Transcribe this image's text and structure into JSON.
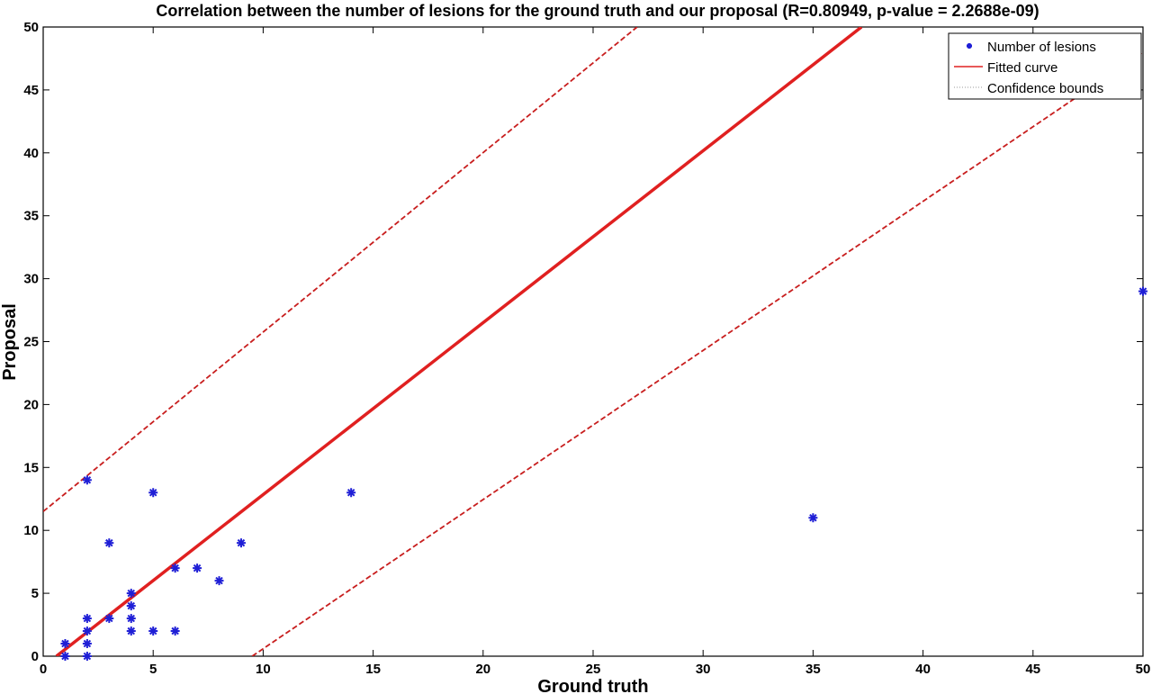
{
  "chart_data": {
    "type": "scatter",
    "title": "Correlation between the number of lesions for the ground truth and our proposal (R=0.80949, p-value = 2.2688e-09)",
    "xlabel": "Ground truth",
    "ylabel": "Proposal",
    "xlim": [
      0,
      50
    ],
    "ylim": [
      0,
      50
    ],
    "xticks": [
      0,
      5,
      10,
      15,
      20,
      25,
      30,
      35,
      40,
      45,
      50
    ],
    "yticks": [
      0,
      5,
      10,
      15,
      20,
      25,
      30,
      35,
      40,
      45,
      50
    ],
    "grid": false,
    "legend_position": "top-right",
    "series": [
      {
        "name": "Number of lesions",
        "kind": "scatter",
        "marker": "asterisk",
        "color": "#1f1fd6",
        "x": [
          1,
          1,
          2,
          2,
          2,
          2,
          2,
          3,
          3,
          4,
          4,
          4,
          4,
          5,
          5,
          6,
          6,
          7,
          8,
          9,
          14,
          35,
          50
        ],
        "y": [
          0,
          1,
          0,
          1,
          2,
          3,
          14,
          3,
          9,
          2,
          3,
          4,
          5,
          2,
          13,
          2,
          7,
          7,
          6,
          9,
          13,
          11,
          29
        ]
      },
      {
        "name": "Fitted curve",
        "kind": "line",
        "style": "solid",
        "color": "#e02020",
        "x": [
          0.6,
          37.2
        ],
        "y": [
          0,
          50
        ]
      },
      {
        "name": "Confidence bounds",
        "kind": "line",
        "style": "dotted",
        "color": "#c81e1e",
        "segments": [
          {
            "x": [
              0,
              27
            ],
            "y": [
              11.5,
              50
            ]
          },
          {
            "x": [
              9.5,
              50
            ],
            "y": [
              0,
              48
            ]
          }
        ]
      }
    ]
  }
}
